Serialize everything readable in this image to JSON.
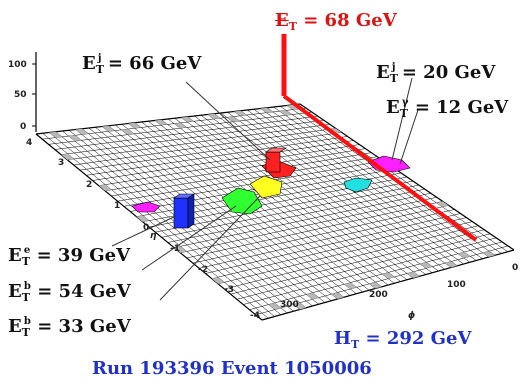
{
  "labels": {
    "met": {
      "sym": "E",
      "sub": "T",
      "value": "= 68 GeV",
      "color": "#e01010"
    },
    "jet1": {
      "sym": "E",
      "sup": "j",
      "sub": "T",
      "value": "= 66 GeV"
    },
    "jet2": {
      "sym": "E",
      "sup": "j",
      "sub": "T",
      "value": "= 20 GeV"
    },
    "photon": {
      "sym": "E",
      "sup": "γ",
      "sub": "T",
      "value": "= 12 GeV"
    },
    "electron": {
      "sym": "E",
      "sup": "e",
      "sub": "T",
      "value": "= 39 GeV"
    },
    "bjet1": {
      "sym": "E",
      "sup": "b",
      "sub": "T",
      "value": "= 54 GeV"
    },
    "bjet2": {
      "sym": "E",
      "sup": "b",
      "sub": "T",
      "value": "= 33 GeV"
    },
    "ht": {
      "sym": "H",
      "sub": "T",
      "value": "= 292 GeV",
      "color": "#2030c8"
    },
    "run": {
      "text": "Run 193396 Event 1050006",
      "color": "#2030c8"
    }
  },
  "axes": {
    "z_ticks": [
      "100",
      "50",
      "0"
    ],
    "eta_ticks": [
      "4",
      "3",
      "2",
      "1",
      "0",
      "-1",
      "-2",
      "-3",
      "-4"
    ],
    "eta_label": "η",
    "phi_ticks": [
      "300",
      "200",
      "100",
      "0"
    ],
    "phi_label": "ϕ"
  },
  "colors": {
    "met_line": "#ff1010",
    "jet1": "#ff2020",
    "jet2": "#ff20ff",
    "photon": "#20e0e0",
    "electron": "#2030ff",
    "bjet1": "#30ff30",
    "bjet2": "#ffff20",
    "grid": "#000000",
    "tower_shade": "#b8b8b8"
  }
}
